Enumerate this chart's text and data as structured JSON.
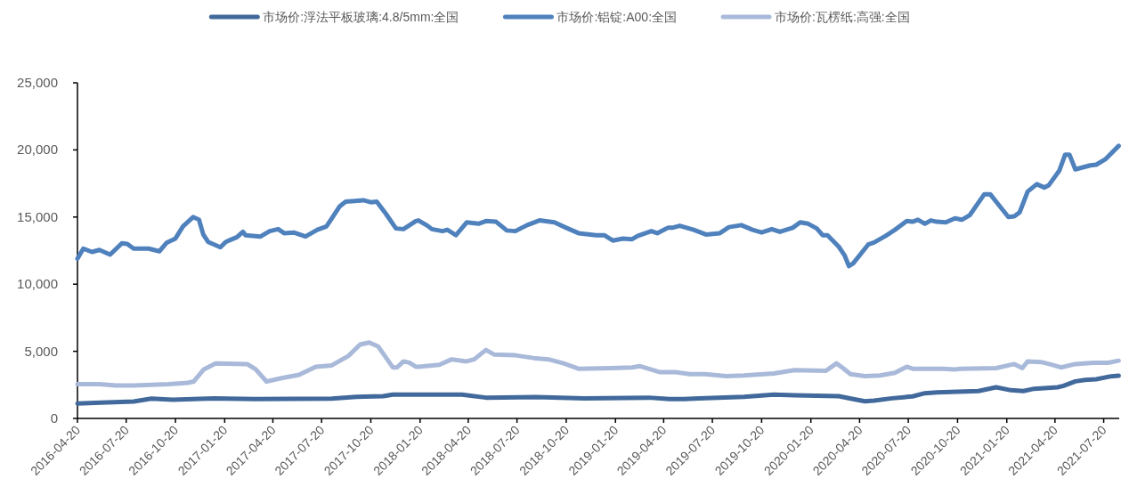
{
  "chart_data": {
    "type": "line",
    "legend": "top",
    "xlim": [
      "2016-04-20",
      "2021-08-18"
    ],
    "xticks": [
      "2016-04-20",
      "2016-07-20",
      "2016-10-20",
      "2017-01-20",
      "2017-04-20",
      "2017-07-20",
      "2017-10-20",
      "2018-01-20",
      "2018-04-20",
      "2018-07-20",
      "2018-10-20",
      "2019-01-20",
      "2019-04-20",
      "2019-07-20",
      "2019-10-20",
      "2020-01-20",
      "2020-04-20",
      "2020-07-20",
      "2020-10-20",
      "2021-01-20",
      "2021-04-20",
      "2021-07-20"
    ],
    "ylim": [
      0,
      25000
    ],
    "yticks": [
      {
        "value": 0,
        "label": "0"
      },
      {
        "value": 5000,
        "label": "5,000"
      },
      {
        "value": 10000,
        "label": "10,000"
      },
      {
        "value": 15000,
        "label": "15,000"
      },
      {
        "value": 20000,
        "label": "20,000"
      },
      {
        "value": 25000,
        "label": "25,000"
      }
    ],
    "series": [
      {
        "name": "市场价:浮法平板玻璃:4.8/5mm:全国",
        "color": "#41699b",
        "x": [
          "2016-04-20",
          "2016-06-03",
          "2016-08-03",
          "2016-09-05",
          "2016-10-15",
          "2016-12-31",
          "2017-03-19",
          "2017-08-08",
          "2017-09-23",
          "2017-11-12",
          "2017-11-30",
          "2018-02-03",
          "2018-04-08",
          "2018-05-23",
          "2018-08-25",
          "2018-11-23",
          "2019-03-23",
          "2019-05-01",
          "2019-05-28",
          "2019-06-25",
          "2019-09-17",
          "2019-11-12",
          "2019-12-20",
          "2020-03-12",
          "2020-04-08",
          "2020-04-30",
          "2020-05-17",
          "2020-06-20",
          "2020-07-28",
          "2020-08-20",
          "2020-09-11",
          "2020-11-28",
          "2020-12-31",
          "2021-01-28",
          "2021-02-20",
          "2021-03-12",
          "2021-04-25",
          "2021-05-06",
          "2021-05-28",
          "2021-06-15",
          "2021-07-06",
          "2021-08-03",
          "2021-08-17"
        ],
        "values": [
          1110,
          1170,
          1260,
          1480,
          1390,
          1500,
          1440,
          1480,
          1610,
          1660,
          1770,
          1770,
          1770,
          1550,
          1590,
          1500,
          1550,
          1440,
          1440,
          1500,
          1610,
          1770,
          1720,
          1660,
          1440,
          1280,
          1330,
          1500,
          1640,
          1880,
          1940,
          2040,
          2320,
          2100,
          2040,
          2210,
          2320,
          2430,
          2760,
          2870,
          2920,
          3140,
          3180
        ]
      },
      {
        "name": "市场价:铝锭:A00:全国",
        "color": "#4f81bd",
        "x": [
          "2016-04-20",
          "2016-05-01",
          "2016-05-17",
          "2016-05-31",
          "2016-06-20",
          "2016-07-12",
          "2016-07-22",
          "2016-08-03",
          "2016-08-31",
          "2016-09-20",
          "2016-10-04",
          "2016-10-20",
          "2016-11-03",
          "2016-11-22",
          "2016-12-03",
          "2016-12-11",
          "2016-12-20",
          "2017-01-12",
          "2017-01-22",
          "2017-02-12",
          "2017-02-23",
          "2017-02-28",
          "2017-03-28",
          "2017-04-14",
          "2017-04-30",
          "2017-05-11",
          "2017-05-29",
          "2017-06-20",
          "2017-07-12",
          "2017-07-29",
          "2017-08-08",
          "2017-08-23",
          "2017-09-03",
          "2017-10-06",
          "2017-10-20",
          "2017-10-31",
          "2017-11-17",
          "2017-12-06",
          "2017-12-20",
          "2018-01-12",
          "2018-01-17",
          "2018-02-03",
          "2018-02-11",
          "2018-03-03",
          "2018-03-12",
          "2018-03-28",
          "2018-04-17",
          "2018-05-09",
          "2018-05-23",
          "2018-06-11",
          "2018-07-01",
          "2018-07-17",
          "2018-08-08",
          "2018-08-31",
          "2018-09-28",
          "2018-10-20",
          "2018-11-12",
          "2018-12-15",
          "2018-12-30",
          "2019-01-15",
          "2019-02-03",
          "2019-02-20",
          "2019-03-03",
          "2019-03-28",
          "2019-04-08",
          "2019-04-28",
          "2019-05-06",
          "2019-05-20",
          "2019-06-15",
          "2019-07-08",
          "2019-08-03",
          "2019-08-20",
          "2019-09-12",
          "2019-10-03",
          "2019-10-20",
          "2019-11-08",
          "2019-11-23",
          "2019-12-17",
          "2019-12-31",
          "2020-01-15",
          "2020-01-31",
          "2020-02-11",
          "2020-02-20",
          "2020-03-12",
          "2020-03-23",
          "2020-03-31",
          "2020-04-08",
          "2020-05-06",
          "2020-05-17",
          "2020-06-08",
          "2020-06-25",
          "2020-07-17",
          "2020-07-28",
          "2020-08-07",
          "2020-08-20",
          "2020-08-31",
          "2020-09-11",
          "2020-09-28",
          "2020-10-15",
          "2020-10-28",
          "2020-11-12",
          "2020-12-09",
          "2020-12-20",
          "2021-01-05",
          "2021-01-23",
          "2021-02-03",
          "2021-02-13",
          "2021-02-28",
          "2021-03-17",
          "2021-03-31",
          "2021-04-08",
          "2021-04-28",
          "2021-05-09",
          "2021-05-17",
          "2021-05-28",
          "2021-06-11",
          "2021-06-25",
          "2021-07-06",
          "2021-07-23",
          "2021-08-17"
        ],
        "values": [
          11900,
          12650,
          12400,
          12550,
          12200,
          13050,
          13000,
          12650,
          12650,
          12450,
          13100,
          13400,
          14300,
          15000,
          14800,
          13700,
          13150,
          12750,
          13150,
          13500,
          13900,
          13650,
          13550,
          13950,
          14100,
          13800,
          13850,
          13550,
          14050,
          14300,
          14900,
          15800,
          16150,
          16250,
          16100,
          16150,
          15250,
          14150,
          14100,
          14700,
          14750,
          14350,
          14100,
          13950,
          14050,
          13650,
          14600,
          14500,
          14700,
          14650,
          14000,
          13950,
          14400,
          14750,
          14600,
          14200,
          13800,
          13650,
          13650,
          13250,
          13400,
          13350,
          13600,
          13950,
          13800,
          14200,
          14200,
          14350,
          14050,
          13700,
          13800,
          14250,
          14400,
          14050,
          13850,
          14100,
          13900,
          14200,
          14600,
          14500,
          14150,
          13650,
          13650,
          12800,
          12150,
          11350,
          11550,
          12950,
          13100,
          13600,
          14050,
          14700,
          14650,
          14800,
          14500,
          14750,
          14650,
          14600,
          14900,
          14800,
          15150,
          16700,
          16700,
          15900,
          15000,
          15050,
          15350,
          16900,
          17450,
          17200,
          17350,
          18450,
          19650,
          19650,
          18550,
          18700,
          18850,
          18900,
          19300,
          20300
        ]
      },
      {
        "name": "市场价:瓦楞纸:高强:全国",
        "color": "#a9b9d9",
        "x": [
          "2016-04-20",
          "2016-05-31",
          "2016-07-01",
          "2016-08-03",
          "2016-10-08",
          "2016-11-12",
          "2016-11-23",
          "2016-12-12",
          "2017-01-03",
          "2017-03-03",
          "2017-03-19",
          "2017-04-08",
          "2017-05-06",
          "2017-06-08",
          "2017-07-09",
          "2017-08-08",
          "2017-09-08",
          "2017-09-30",
          "2017-10-17",
          "2017-11-03",
          "2017-11-17",
          "2017-11-30",
          "2017-12-08",
          "2017-12-20",
          "2017-12-31",
          "2018-01-12",
          "2018-01-17",
          "2018-02-25",
          "2018-03-20",
          "2018-04-17",
          "2018-05-01",
          "2018-05-23",
          "2018-06-08",
          "2018-07-17",
          "2018-08-20",
          "2018-09-17",
          "2018-10-15",
          "2018-11-12",
          "2019-01-12",
          "2019-02-20",
          "2019-03-06",
          "2019-04-12",
          "2019-05-12",
          "2019-06-08",
          "2019-07-06",
          "2019-08-15",
          "2019-09-17",
          "2019-11-12",
          "2019-12-20",
          "2020-02-17",
          "2020-03-08",
          "2020-03-20",
          "2020-04-03",
          "2020-04-30",
          "2020-05-28",
          "2020-06-25",
          "2020-07-17",
          "2020-07-28",
          "2020-09-23",
          "2020-10-15",
          "2020-10-25",
          "2020-12-31",
          "2021-02-03",
          "2021-02-18",
          "2021-02-28",
          "2021-03-25",
          "2021-04-14",
          "2021-05-01",
          "2021-05-28",
          "2021-07-01",
          "2021-07-28",
          "2021-08-17"
        ],
        "values": [
          2550,
          2550,
          2450,
          2450,
          2550,
          2650,
          2750,
          3650,
          4100,
          4050,
          3650,
          2750,
          3000,
          3250,
          3850,
          3950,
          4650,
          5500,
          5650,
          5350,
          4550,
          3800,
          3800,
          4250,
          4150,
          3850,
          3850,
          4000,
          4400,
          4250,
          4400,
          5100,
          4750,
          4700,
          4500,
          4400,
          4100,
          3700,
          3750,
          3800,
          3900,
          3450,
          3450,
          3300,
          3300,
          3150,
          3200,
          3350,
          3600,
          3550,
          4100,
          3750,
          3300,
          3150,
          3200,
          3400,
          3850,
          3700,
          3700,
          3650,
          3700,
          3750,
          4050,
          3750,
          4250,
          4200,
          4000,
          3800,
          4050,
          4150,
          4150,
          4300
        ]
      }
    ]
  }
}
